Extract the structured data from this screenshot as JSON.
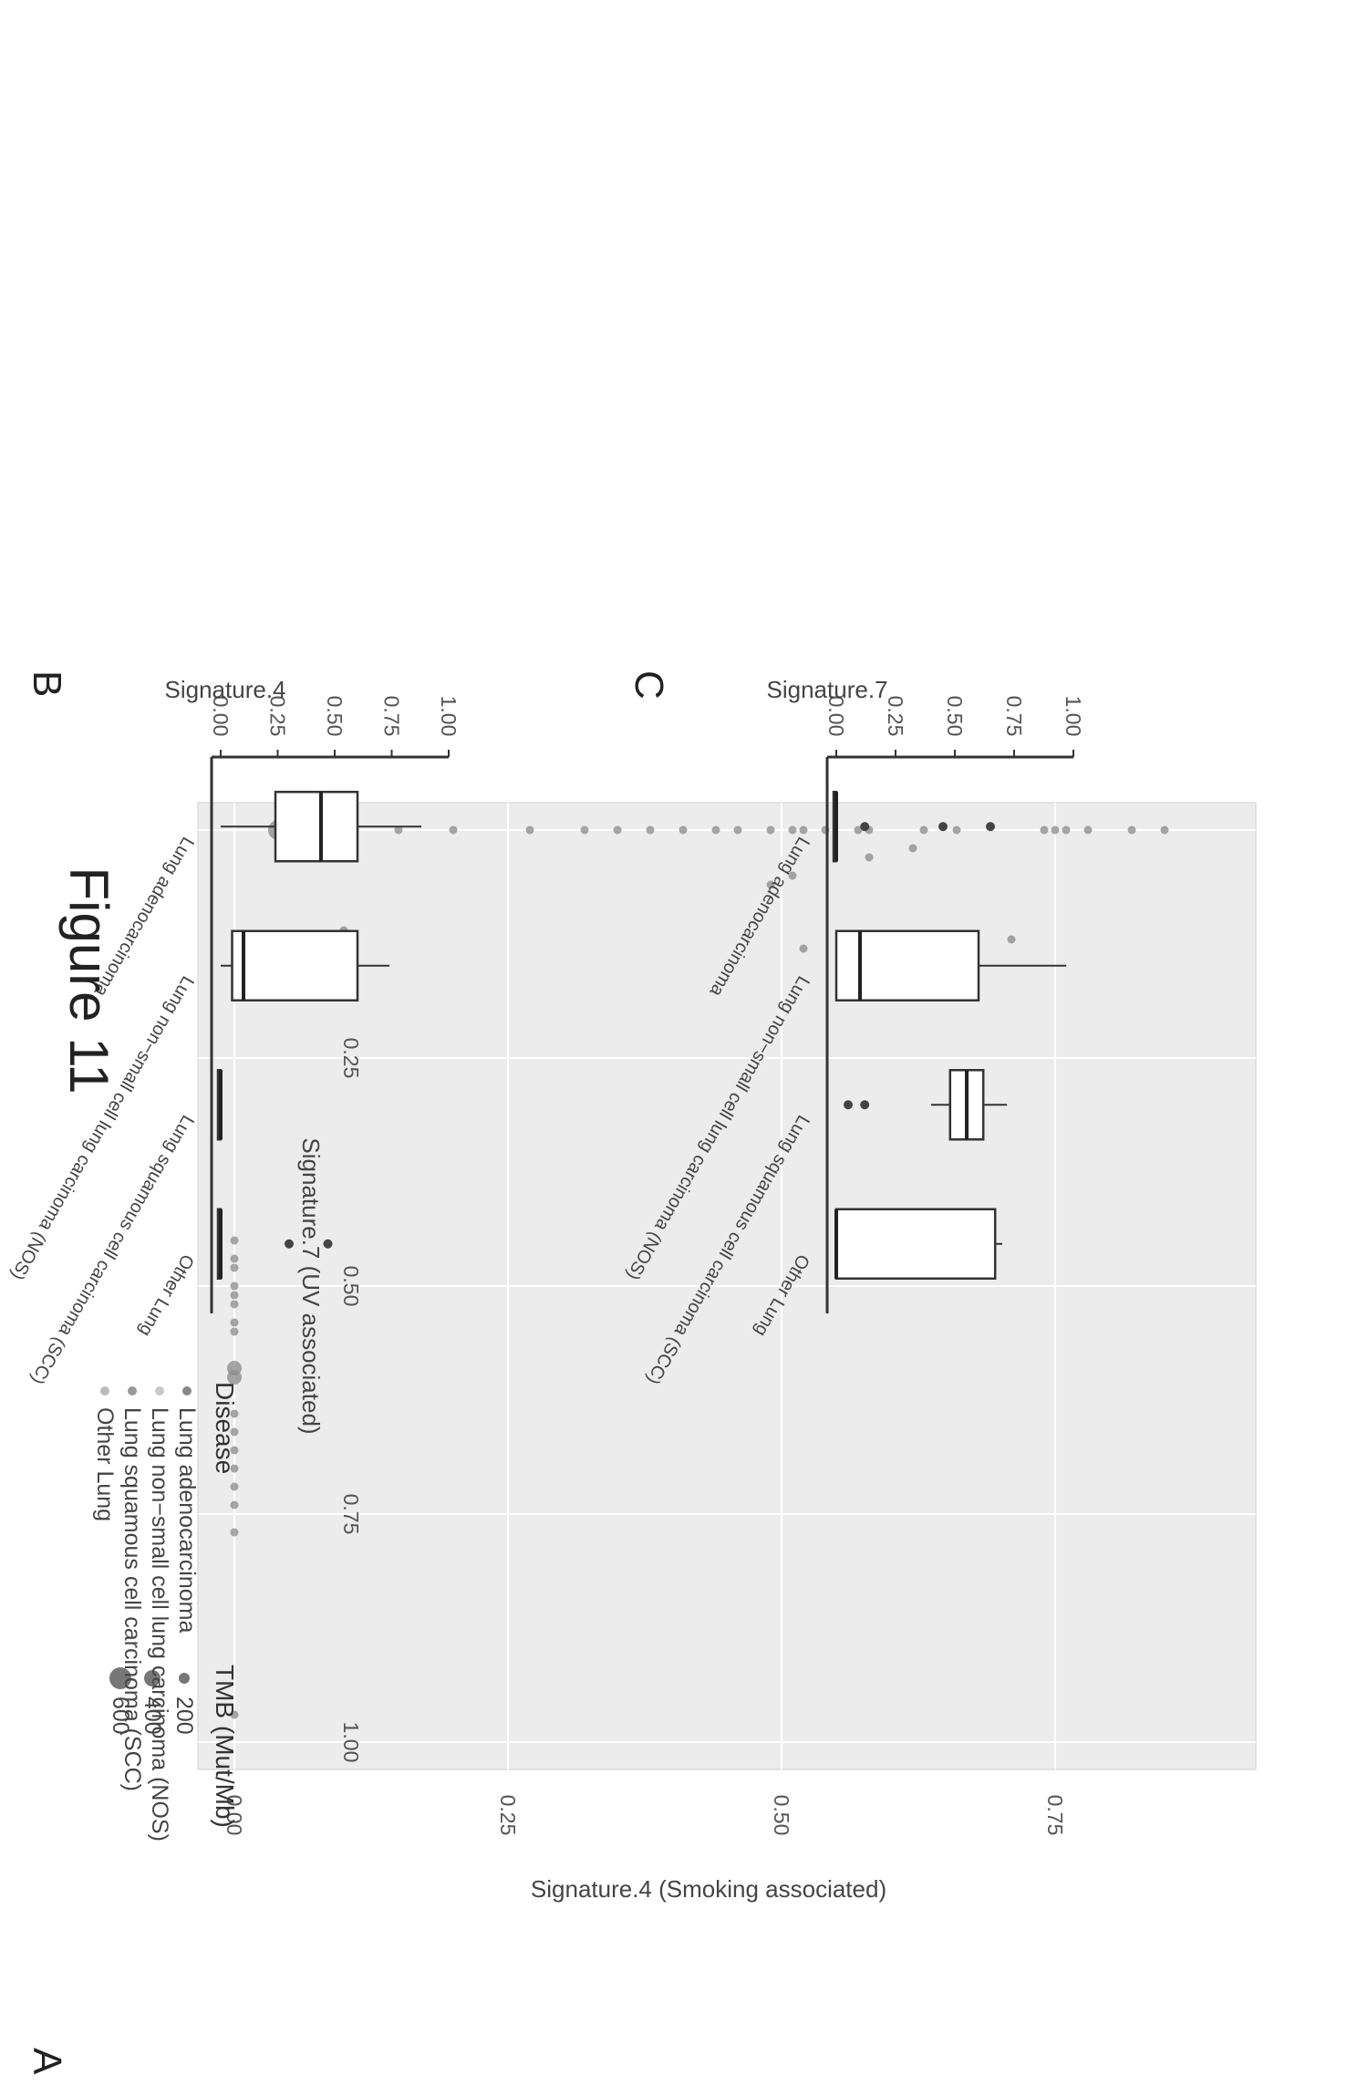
{
  "figure_caption": "Figure 11",
  "panels": {
    "A": {
      "letter": "A"
    },
    "B": {
      "letter": "B"
    },
    "C": {
      "letter": "C"
    }
  },
  "chart_data": [
    {
      "id": "A",
      "type": "scatter",
      "xlabel": "Signature.7 (UV associated)",
      "ylabel": "Signature.4 (Smoking associated)",
      "xlim": [
        0,
        1.0
      ],
      "ylim": [
        0,
        0.9
      ],
      "xticks": [
        "0.00",
        "0.25",
        "0.50",
        "0.75",
        "1.00"
      ],
      "yticks": [
        "0.00",
        "0.25",
        "0.50",
        "0.75"
      ],
      "grid": true,
      "size_legend": {
        "title": "TMB (Mut/Mb)",
        "entries": [
          "200",
          "400",
          "600"
        ]
      },
      "color_legend": {
        "title": "Disease",
        "entries": [
          "Lung adenocarcinoma",
          "Lung non−small cell lung carcinoma (NOS)",
          "Lung squamous cell carcinoma (SCC)",
          "Other Lung"
        ]
      },
      "points": [
        {
          "x": 0.0,
          "y": 0.85,
          "tmb": 200
        },
        {
          "x": 0.0,
          "y": 0.82,
          "tmb": 200
        },
        {
          "x": 0.0,
          "y": 0.78,
          "tmb": 200
        },
        {
          "x": 0.0,
          "y": 0.76,
          "tmb": 200
        },
        {
          "x": 0.0,
          "y": 0.75,
          "tmb": 200
        },
        {
          "x": 0.0,
          "y": 0.74,
          "tmb": 200
        },
        {
          "x": 0.0,
          "y": 0.66,
          "tmb": 200
        },
        {
          "x": 0.0,
          "y": 0.63,
          "tmb": 200
        },
        {
          "x": 0.0,
          "y": 0.58,
          "tmb": 200
        },
        {
          "x": 0.0,
          "y": 0.57,
          "tmb": 200
        },
        {
          "x": 0.0,
          "y": 0.54,
          "tmb": 200
        },
        {
          "x": 0.0,
          "y": 0.52,
          "tmb": 200
        },
        {
          "x": 0.0,
          "y": 0.51,
          "tmb": 200
        },
        {
          "x": 0.0,
          "y": 0.49,
          "tmb": 200
        },
        {
          "x": 0.0,
          "y": 0.46,
          "tmb": 200
        },
        {
          "x": 0.0,
          "y": 0.44,
          "tmb": 200
        },
        {
          "x": 0.0,
          "y": 0.41,
          "tmb": 200
        },
        {
          "x": 0.0,
          "y": 0.38,
          "tmb": 200
        },
        {
          "x": 0.0,
          "y": 0.35,
          "tmb": 200
        },
        {
          "x": 0.0,
          "y": 0.32,
          "tmb": 200
        },
        {
          "x": 0.0,
          "y": 0.27,
          "tmb": 200
        },
        {
          "x": 0.0,
          "y": 0.2,
          "tmb": 200
        },
        {
          "x": 0.0,
          "y": 0.15,
          "tmb": 200
        },
        {
          "x": 0.0,
          "y": 0.11,
          "tmb": 200
        },
        {
          "x": 0.0,
          "y": 0.08,
          "tmb": 200
        },
        {
          "x": 0.0,
          "y": 0.04,
          "tmb": 600
        },
        {
          "x": 0.02,
          "y": 0.62,
          "tmb": 200
        },
        {
          "x": 0.03,
          "y": 0.58,
          "tmb": 200
        },
        {
          "x": 0.05,
          "y": 0.51,
          "tmb": 200
        },
        {
          "x": 0.06,
          "y": 0.49,
          "tmb": 200
        },
        {
          "x": 0.03,
          "y": 0.08,
          "tmb": 200
        },
        {
          "x": 0.12,
          "y": 0.71,
          "tmb": 200
        },
        {
          "x": 0.13,
          "y": 0.52,
          "tmb": 200
        },
        {
          "x": 0.11,
          "y": 0.1,
          "tmb": 200
        },
        {
          "x": 0.13,
          "y": 0.02,
          "tmb": 200
        },
        {
          "x": 0.45,
          "y": 0.0,
          "tmb": 200
        },
        {
          "x": 0.47,
          "y": 0.0,
          "tmb": 200
        },
        {
          "x": 0.48,
          "y": 0.0,
          "tmb": 200
        },
        {
          "x": 0.5,
          "y": 0.0,
          "tmb": 200
        },
        {
          "x": 0.51,
          "y": 0.0,
          "tmb": 200
        },
        {
          "x": 0.52,
          "y": 0.0,
          "tmb": 200
        },
        {
          "x": 0.54,
          "y": 0.0,
          "tmb": 200
        },
        {
          "x": 0.55,
          "y": 0.0,
          "tmb": 200
        },
        {
          "x": 0.59,
          "y": 0.0,
          "tmb": 400
        },
        {
          "x": 0.6,
          "y": 0.0,
          "tmb": 400
        },
        {
          "x": 0.64,
          "y": 0.0,
          "tmb": 200
        },
        {
          "x": 0.66,
          "y": 0.0,
          "tmb": 200
        },
        {
          "x": 0.68,
          "y": 0.0,
          "tmb": 200
        },
        {
          "x": 0.7,
          "y": 0.0,
          "tmb": 200
        },
        {
          "x": 0.72,
          "y": 0.0,
          "tmb": 200
        },
        {
          "x": 0.74,
          "y": 0.0,
          "tmb": 200
        },
        {
          "x": 0.77,
          "y": 0.0,
          "tmb": 200
        },
        {
          "x": 0.97,
          "y": 0.0,
          "tmb": 200
        }
      ]
    },
    {
      "id": "B",
      "type": "boxplot",
      "ylabel": "Signature.4",
      "ylim": [
        0,
        1.0
      ],
      "yticks": [
        "1.00",
        "0.75",
        "0.50",
        "0.25",
        "0.00"
      ],
      "categories": [
        "Lung adenocarcinoma",
        "Lung non−small cell lung carcinoma (NOS)",
        "Lung squamous cell carcinoma (SCC)",
        "Other Lung"
      ],
      "boxes": [
        {
          "whisker_low": 0.0,
          "q1": 0.24,
          "median": 0.44,
          "q3": 0.6,
          "whisker_high": 0.88,
          "outliers": []
        },
        {
          "whisker_low": 0.0,
          "q1": 0.05,
          "median": 0.1,
          "q3": 0.6,
          "whisker_high": 0.74,
          "outliers": []
        },
        {
          "whisker_low": 0.0,
          "q1": 0.0,
          "median": 0.0,
          "q3": 0.0,
          "whisker_high": 0.0,
          "outliers": []
        },
        {
          "whisker_low": 0.0,
          "q1": 0.0,
          "median": 0.0,
          "q3": 0.0,
          "whisker_high": 0.0,
          "outliers": [
            0.3,
            0.47
          ]
        }
      ]
    },
    {
      "id": "C",
      "type": "boxplot",
      "ylabel": "Signature.7",
      "ylim": [
        0,
        1.0
      ],
      "yticks": [
        "1.00",
        "0.75",
        "0.50",
        "0.25",
        "0.00"
      ],
      "categories": [
        "Lung adenocarcinoma",
        "Lung non−small cell lung carcinoma (NOS)",
        "Lung squamous cell carcinoma (SCC)",
        "Other Lung"
      ],
      "boxes": [
        {
          "whisker_low": 0.0,
          "q1": 0.0,
          "median": 0.0,
          "q3": 0.0,
          "whisker_high": 0.0,
          "outliers": [
            0.12,
            0.45,
            0.65
          ]
        },
        {
          "whisker_low": 0.0,
          "q1": 0.0,
          "median": 0.1,
          "q3": 0.6,
          "whisker_high": 0.97,
          "outliers": []
        },
        {
          "whisker_low": 0.4,
          "q1": 0.48,
          "median": 0.55,
          "q3": 0.62,
          "whisker_high": 0.72,
          "outliers": [
            0.05,
            0.12
          ]
        },
        {
          "whisker_low": 0.0,
          "q1": 0.0,
          "median": 0.0,
          "q3": 0.67,
          "whisker_high": 0.7,
          "outliers": []
        }
      ]
    }
  ]
}
